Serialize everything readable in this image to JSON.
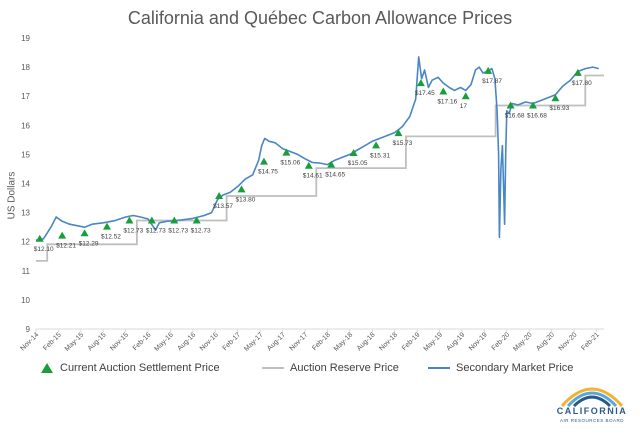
{
  "chart_data": {
    "type": "line",
    "title": "California and Québec Carbon Allowance Prices",
    "ylabel": "US Dollars",
    "ylim": [
      9,
      19
    ],
    "yticks": [
      "9",
      "10",
      "11",
      "12",
      "13",
      "14",
      "15",
      "16",
      "17",
      "18",
      "19"
    ],
    "xticks": [
      "Nov-14",
      "Feb-15",
      "May-15",
      "Aug-15",
      "Nov-15",
      "Feb-16",
      "May-16",
      "Aug-16",
      "Nov-16",
      "Feb-17",
      "May-17",
      "Aug-17",
      "Nov-17",
      "Feb-18",
      "May-18",
      "Aug-18",
      "Nov-18",
      "Feb-19",
      "May-19",
      "Aug-19",
      "Nov-19",
      "Feb-20",
      "May-20",
      "Aug-20",
      "Nov-20",
      "Feb-21"
    ],
    "xlim": [
      0,
      76
    ],
    "series": [
      {
        "name": "Current Auction Settlement Price",
        "color": "#1a9e3a",
        "marker": "triangle",
        "points": [
          {
            "x": 0.5,
            "y": 12.1,
            "label": "$12.10"
          },
          {
            "x": 3.5,
            "y": 12.21,
            "label": "$12.21"
          },
          {
            "x": 6.5,
            "y": 12.29,
            "label": "$12.29"
          },
          {
            "x": 9.5,
            "y": 12.52,
            "label": "$12.52"
          },
          {
            "x": 12.5,
            "y": 12.73,
            "label": "$12.73"
          },
          {
            "x": 15.5,
            "y": 12.73,
            "label": "$12.73"
          },
          {
            "x": 18.5,
            "y": 12.73,
            "label": "$12.73"
          },
          {
            "x": 21.5,
            "y": 12.73,
            "label": "$12.73"
          },
          {
            "x": 24.5,
            "y": 13.57,
            "label": "$13.57"
          },
          {
            "x": 27.5,
            "y": 13.8,
            "label": "$13.80"
          },
          {
            "x": 30.5,
            "y": 14.75,
            "label": "$14.75"
          },
          {
            "x": 33.5,
            "y": 15.06,
            "label": "$15.06"
          },
          {
            "x": 36.5,
            "y": 14.61,
            "label": "$14.61"
          },
          {
            "x": 39.5,
            "y": 14.65,
            "label": "$14.65"
          },
          {
            "x": 42.5,
            "y": 15.05,
            "label": "$15.05"
          },
          {
            "x": 45.5,
            "y": 15.31,
            "label": "$15.31"
          },
          {
            "x": 48.5,
            "y": 15.73,
            "label": "$15.73"
          },
          {
            "x": 51.5,
            "y": 17.45,
            "label": "$17.45"
          },
          {
            "x": 54.5,
            "y": 17.16,
            "label": "$17.16"
          },
          {
            "x": 57.5,
            "y": 17,
            "label": "17"
          },
          {
            "x": 60.5,
            "y": 17.87,
            "label": "$17.87"
          },
          {
            "x": 63.5,
            "y": 16.68,
            "label": "$16.68"
          },
          {
            "x": 66.5,
            "y": 16.68,
            "label": "$16.68"
          },
          {
            "x": 69.5,
            "y": 16.93,
            "label": "$16.93"
          },
          {
            "x": 72.5,
            "y": 17.8,
            "label": "$17.80"
          }
        ]
      },
      {
        "name": "Auction Reserve Price",
        "color": "#bfbfbf",
        "step": [
          {
            "x": 0,
            "y": 11.34
          },
          {
            "x": 1.5,
            "y": 11.34
          },
          {
            "x": 1.5,
            "y": 11.91
          },
          {
            "x": 13.5,
            "y": 11.91
          },
          {
            "x": 13.5,
            "y": 12.73
          },
          {
            "x": 25.5,
            "y": 12.73
          },
          {
            "x": 25.5,
            "y": 13.57
          },
          {
            "x": 37.5,
            "y": 13.57
          },
          {
            "x": 37.5,
            "y": 14.53
          },
          {
            "x": 49.5,
            "y": 14.53
          },
          {
            "x": 49.5,
            "y": 15.62
          },
          {
            "x": 61.5,
            "y": 15.62
          },
          {
            "x": 61.5,
            "y": 16.68
          },
          {
            "x": 73.5,
            "y": 16.68
          },
          {
            "x": 73.5,
            "y": 17.71
          },
          {
            "x": 76,
            "y": 17.71
          }
        ]
      },
      {
        "name": "Secondary Market Price",
        "color": "#4a86c5",
        "points": [
          {
            "x": 0,
            "y": 12.05
          },
          {
            "x": 1,
            "y": 12.1
          },
          {
            "x": 2,
            "y": 12.5
          },
          {
            "x": 2.7,
            "y": 12.85
          },
          {
            "x": 3.5,
            "y": 12.7
          },
          {
            "x": 4.5,
            "y": 12.6
          },
          {
            "x": 5.5,
            "y": 12.55
          },
          {
            "x": 6.5,
            "y": 12.5
          },
          {
            "x": 7.5,
            "y": 12.6
          },
          {
            "x": 9,
            "y": 12.65
          },
          {
            "x": 10.5,
            "y": 12.72
          },
          {
            "x": 12,
            "y": 12.85
          },
          {
            "x": 13,
            "y": 12.9
          },
          {
            "x": 14,
            "y": 12.85
          },
          {
            "x": 15,
            "y": 12.78
          },
          {
            "x": 16,
            "y": 12.4
          },
          {
            "x": 16.5,
            "y": 12.65
          },
          {
            "x": 17.5,
            "y": 12.7
          },
          {
            "x": 18.5,
            "y": 12.72
          },
          {
            "x": 19.5,
            "y": 12.75
          },
          {
            "x": 21,
            "y": 12.8
          },
          {
            "x": 22.5,
            "y": 12.9
          },
          {
            "x": 23.5,
            "y": 13.0
          },
          {
            "x": 24.3,
            "y": 13.45
          },
          {
            "x": 25,
            "y": 13.6
          },
          {
            "x": 26,
            "y": 13.7
          },
          {
            "x": 27,
            "y": 13.9
          },
          {
            "x": 28,
            "y": 14.15
          },
          {
            "x": 29,
            "y": 14.3
          },
          {
            "x": 29.8,
            "y": 14.8
          },
          {
            "x": 30.2,
            "y": 15.3
          },
          {
            "x": 30.6,
            "y": 15.55
          },
          {
            "x": 31.2,
            "y": 15.45
          },
          {
            "x": 32,
            "y": 15.4
          },
          {
            "x": 33,
            "y": 15.2
          },
          {
            "x": 34,
            "y": 15.1
          },
          {
            "x": 35,
            "y": 15.0
          },
          {
            "x": 36,
            "y": 14.85
          },
          {
            "x": 37,
            "y": 14.72
          },
          {
            "x": 38,
            "y": 14.7
          },
          {
            "x": 39,
            "y": 14.65
          },
          {
            "x": 40,
            "y": 14.8
          },
          {
            "x": 41,
            "y": 14.9
          },
          {
            "x": 42,
            "y": 15.0
          },
          {
            "x": 43,
            "y": 15.15
          },
          {
            "x": 44,
            "y": 15.3
          },
          {
            "x": 45,
            "y": 15.45
          },
          {
            "x": 46,
            "y": 15.55
          },
          {
            "x": 47,
            "y": 15.65
          },
          {
            "x": 48,
            "y": 15.75
          },
          {
            "x": 49,
            "y": 15.95
          },
          {
            "x": 50,
            "y": 16.3
          },
          {
            "x": 50.8,
            "y": 16.9
          },
          {
            "x": 51.2,
            "y": 18.35
          },
          {
            "x": 51.6,
            "y": 17.6
          },
          {
            "x": 52,
            "y": 17.9
          },
          {
            "x": 52.5,
            "y": 17.3
          },
          {
            "x": 53,
            "y": 17.55
          },
          {
            "x": 53.8,
            "y": 17.65
          },
          {
            "x": 54.5,
            "y": 17.45
          },
          {
            "x": 55.3,
            "y": 17.3
          },
          {
            "x": 56,
            "y": 17.2
          },
          {
            "x": 56.8,
            "y": 17.3
          },
          {
            "x": 57.5,
            "y": 17.2
          },
          {
            "x": 58.2,
            "y": 17.4
          },
          {
            "x": 58.8,
            "y": 17.9
          },
          {
            "x": 59.3,
            "y": 18.0
          },
          {
            "x": 59.8,
            "y": 17.8
          },
          {
            "x": 60.4,
            "y": 17.85
          },
          {
            "x": 61,
            "y": 17.95
          },
          {
            "x": 61.4,
            "y": 17.6
          },
          {
            "x": 61.7,
            "y": 16.5
          },
          {
            "x": 61.9,
            "y": 15.0
          },
          {
            "x": 62.0,
            "y": 12.15
          },
          {
            "x": 62.2,
            "y": 14.5
          },
          {
            "x": 62.4,
            "y": 15.3
          },
          {
            "x": 62.55,
            "y": 14.0
          },
          {
            "x": 62.7,
            "y": 12.6
          },
          {
            "x": 62.85,
            "y": 15.0
          },
          {
            "x": 63.0,
            "y": 16.5
          },
          {
            "x": 63.3,
            "y": 16.4
          },
          {
            "x": 63.7,
            "y": 16.75
          },
          {
            "x": 64.5,
            "y": 16.7
          },
          {
            "x": 65.5,
            "y": 16.8
          },
          {
            "x": 66.5,
            "y": 16.75
          },
          {
            "x": 67.5,
            "y": 16.85
          },
          {
            "x": 68.5,
            "y": 16.95
          },
          {
            "x": 69.5,
            "y": 17.05
          },
          {
            "x": 70.5,
            "y": 17.35
          },
          {
            "x": 71.5,
            "y": 17.55
          },
          {
            "x": 72.5,
            "y": 17.85
          },
          {
            "x": 73.5,
            "y": 17.95
          },
          {
            "x": 74.5,
            "y": 18.0
          },
          {
            "x": 75.3,
            "y": 17.95
          }
        ]
      }
    ]
  },
  "legend": {
    "items": [
      "Current Auction Settlement Price",
      "Auction Reserve Price",
      "Secondary Market Price"
    ]
  },
  "logo": {
    "name": "CALIFORNIA",
    "sub": "AIR RESOURCES BOARD",
    "colors": [
      "#f2b233",
      "#5aa7d8",
      "#2a5a8a"
    ]
  }
}
